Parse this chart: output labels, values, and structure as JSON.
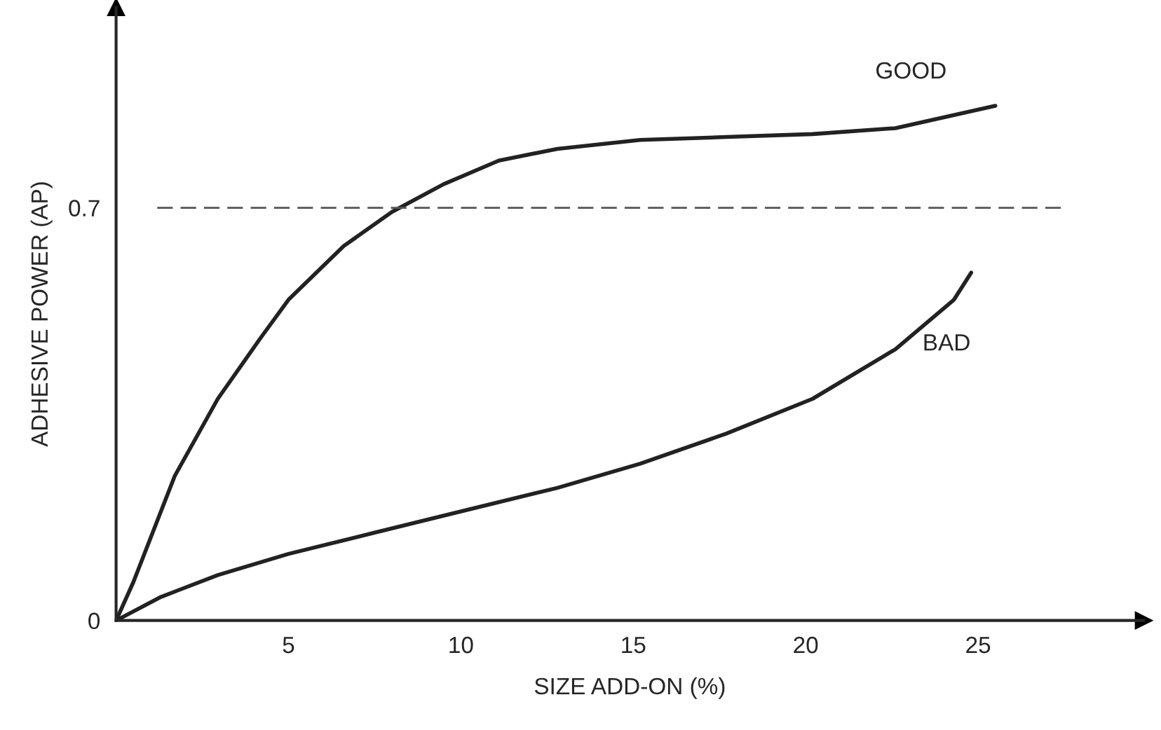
{
  "chart_data": {
    "type": "line",
    "xlabel": "SIZE ADD-ON (%)",
    "ylabel": "ADHESIVE POWER (AP)",
    "xlim": [
      0,
      29.8
    ],
    "ylim": [
      0,
      1.04
    ],
    "xticks": [
      5,
      10,
      15,
      20,
      25
    ],
    "yticks": [
      0,
      0.7
    ],
    "grid": false,
    "legend": false,
    "marker": "none",
    "line_style": "solid",
    "ref_lines": [
      {
        "axis": "y",
        "value": 0.7,
        "label": null,
        "color": "#555555",
        "line_style": "dashed"
      }
    ],
    "series": [
      {
        "name": "GOOD",
        "color": "#222222",
        "x": [
          0,
          0.5,
          1.7,
          2.95,
          4.2,
          5,
          6.6,
          8,
          9.5,
          11.1,
          12.8,
          15.2,
          17.7,
          20.2,
          22.6,
          25.5
        ],
        "values": [
          0,
          0.065,
          0.245,
          0.376,
          0.48,
          0.544,
          0.635,
          0.693,
          0.74,
          0.78,
          0.8,
          0.815,
          0.82,
          0.825,
          0.835,
          0.873
        ]
      },
      {
        "name": "BAD",
        "color": "#222222",
        "x": [
          0,
          1.3,
          2.95,
          5,
          7.5,
          10,
          12.8,
          15.2,
          17.7,
          20.2,
          22.6,
          24.3,
          24.8
        ],
        "values": [
          0,
          0.04,
          0.077,
          0.113,
          0.149,
          0.185,
          0.225,
          0.266,
          0.317,
          0.376,
          0.46,
          0.544,
          0.59
        ]
      }
    ]
  }
}
